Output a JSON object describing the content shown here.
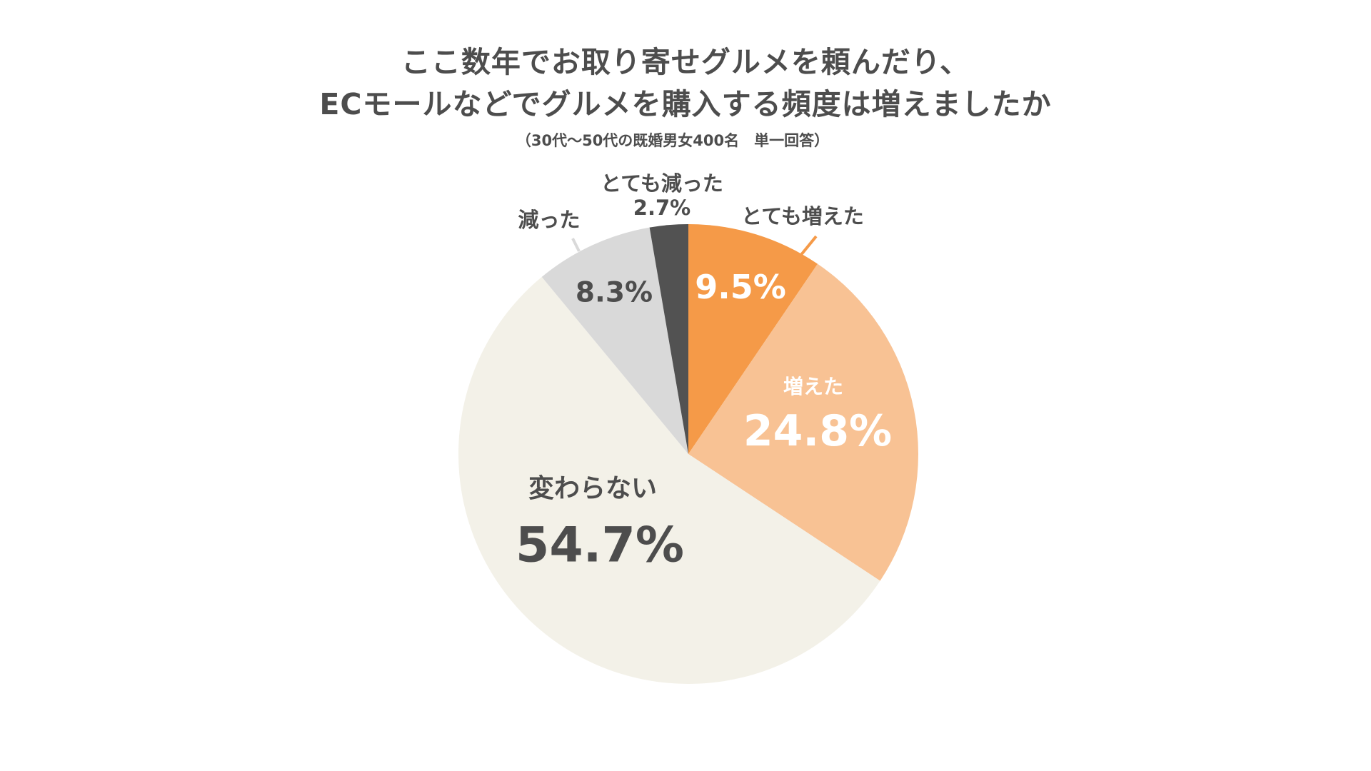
{
  "header": {
    "title_line1": "ここ数年でお取り寄せグルメを頼んだり、",
    "title_line2": "ECモールなどでグルメを購入する頻度は増えましたか",
    "subtitle": "（30代〜50代の既婚男女400名　単一回答）"
  },
  "labels": {
    "very_increased": "とても増えた",
    "very_increased_pct": "9.5%",
    "increased": "増えた",
    "increased_pct": "24.8%",
    "unchanged": "変わらない",
    "unchanged_pct": "54.7%",
    "decreased": "減った",
    "decreased_pct": "8.3%",
    "very_decreased": "とても減った",
    "very_decreased_pct": "2.7%"
  },
  "colors": {
    "very_increased": "#F59A48",
    "increased": "#F8C294",
    "unchanged": "#F3F1E8",
    "decreased": "#D9D9D9",
    "very_decreased": "#525252"
  },
  "chart_data": {
    "type": "pie",
    "title": "ここ数年でお取り寄せグルメを頼んだり、ECモールなどでグルメを購入する頻度は増えましたか",
    "subtitle": "（30代〜50代の既婚男女400名　単一回答）",
    "categories": [
      "とても増えた",
      "増えた",
      "変わらない",
      "減った",
      "とても減った"
    ],
    "values": [
      9.5,
      24.8,
      54.7,
      8.3,
      2.7
    ],
    "unit": "%",
    "colors": [
      "#F59A48",
      "#F8C294",
      "#F3F1E8",
      "#D9D9D9",
      "#525252"
    ],
    "start_angle": "12 o'clock, clockwise",
    "legend": "none (direct labels)"
  }
}
